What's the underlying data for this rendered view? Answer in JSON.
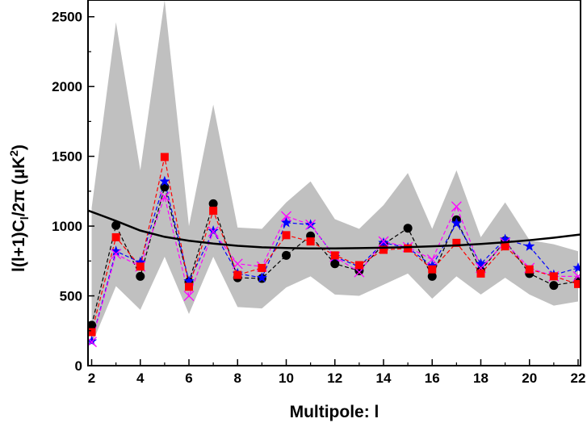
{
  "chart_data": {
    "type": "line",
    "title": "",
    "xlabel": "Multipole: l",
    "ylabel": "l(l+1)C_l/2π (μK²)",
    "xlim": [
      1.85,
      22.1
    ],
    "ylim": [
      0,
      2620
    ],
    "xticks": [
      2,
      4,
      6,
      8,
      10,
      12,
      14,
      16,
      18,
      20,
      22
    ],
    "yticks": [
      0,
      500,
      1000,
      1500,
      2000,
      2500
    ],
    "x": [
      2,
      3,
      4,
      5,
      6,
      7,
      8,
      9,
      10,
      11,
      12,
      13,
      14,
      15,
      16,
      17,
      18,
      19,
      20,
      21,
      22
    ],
    "band": {
      "color": "#c0c0c0",
      "upper": [
        1130,
        2460,
        1400,
        2620,
        1000,
        1870,
        990,
        980,
        1170,
        1320,
        1050,
        980,
        1150,
        1380,
        980,
        1400,
        920,
        1170,
        900,
        870,
        820
      ],
      "lower": [
        150,
        570,
        400,
        780,
        370,
        780,
        420,
        410,
        560,
        640,
        510,
        500,
        580,
        660,
        480,
        640,
        510,
        630,
        510,
        430,
        460
      ]
    },
    "model_curve": {
      "color": "#000000",
      "points": [
        [
          1.85,
          1112
        ],
        [
          3,
          1037
        ],
        [
          4,
          968
        ],
        [
          5,
          923
        ],
        [
          6,
          895
        ],
        [
          7,
          875
        ],
        [
          8,
          859
        ],
        [
          9,
          848
        ],
        [
          10,
          843
        ],
        [
          11,
          840
        ],
        [
          12,
          840
        ],
        [
          13,
          842
        ],
        [
          14,
          845
        ],
        [
          15,
          849
        ],
        [
          16,
          855
        ],
        [
          17,
          862
        ],
        [
          18,
          872
        ],
        [
          19,
          884
        ],
        [
          20,
          899
        ],
        [
          21,
          917
        ],
        [
          22.1,
          940
        ]
      ]
    },
    "series": [
      {
        "color": "#000000",
        "marker": "circle",
        "values": [
          290,
          1005,
          640,
          1280,
          600,
          1160,
          630,
          625,
          790,
          930,
          730,
          680,
          870,
          985,
          640,
          1045,
          680,
          895,
          660,
          575,
          605
        ]
      },
      {
        "color": "#0000ff",
        "marker": "star",
        "values": [
          175,
          820,
          740,
          1320,
          605,
          965,
          660,
          630,
          1025,
          1010,
          780,
          710,
          880,
          845,
          715,
          1020,
          730,
          905,
          855,
          650,
          700
        ]
      },
      {
        "color": "#ff00ff",
        "marker": "x",
        "values": [
          170,
          800,
          710,
          1210,
          500,
          960,
          730,
          710,
          1070,
          1010,
          780,
          670,
          890,
          850,
          760,
          1140,
          700,
          880,
          700,
          640,
          640
        ]
      },
      {
        "color": "#ff0000",
        "marker": "square",
        "values": [
          240,
          920,
          710,
          1495,
          565,
          1110,
          650,
          700,
          935,
          890,
          790,
          720,
          830,
          840,
          690,
          880,
          660,
          855,
          690,
          640,
          585
        ]
      }
    ]
  }
}
